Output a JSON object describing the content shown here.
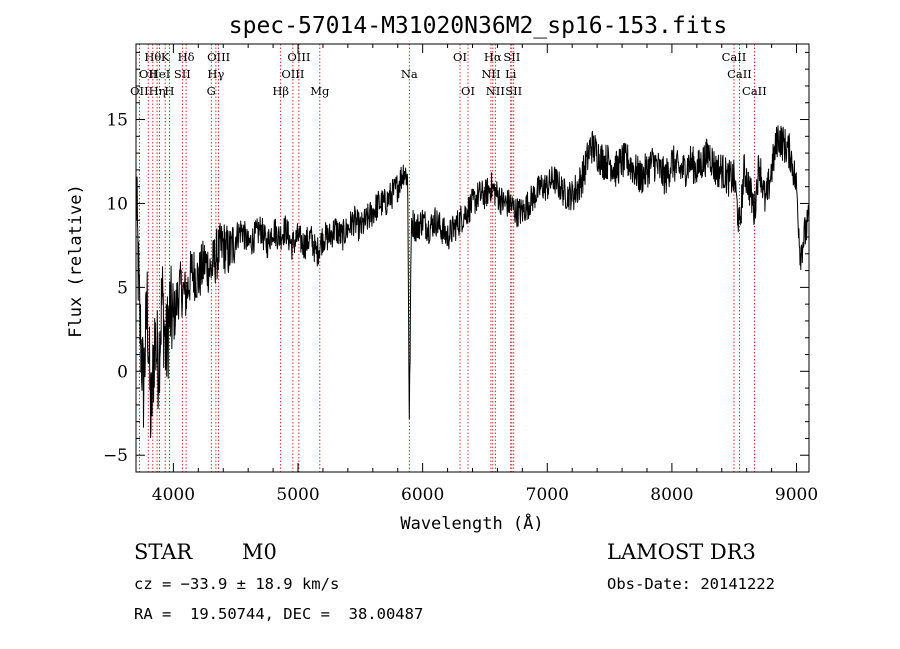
{
  "chart_data": {
    "type": "line",
    "title": "spec-57014-M31020N36M2_sp16-153.fits",
    "xlabel": "Wavelength (Å)",
    "ylabel": "Flux (relative)",
    "xlim": [
      3700,
      9100
    ],
    "ylim": [
      -6,
      19.5
    ],
    "xticks": [
      4000,
      5000,
      6000,
      7000,
      8000,
      9000
    ],
    "xtick_labels": [
      "4000",
      "5000",
      "6000",
      "7000",
      "8000",
      "9000"
    ],
    "yticks": [
      -5,
      0,
      5,
      10,
      15
    ],
    "ytick_labels": [
      "−5",
      "0",
      "5",
      "10",
      "15"
    ],
    "series": [
      {
        "name": "spectrum",
        "x": [
          3700,
          3730,
          3760,
          3790,
          3820,
          3850,
          3880,
          3910,
          3940,
          3970,
          4000,
          4050,
          4100,
          4150,
          4200,
          4250,
          4300,
          4350,
          4400,
          4450,
          4500,
          4550,
          4600,
          4650,
          4700,
          4750,
          4800,
          4850,
          4900,
          4950,
          5000,
          5050,
          5100,
          5150,
          5200,
          5250,
          5300,
          5350,
          5400,
          5450,
          5500,
          5550,
          5600,
          5650,
          5700,
          5750,
          5800,
          5850,
          5880,
          5893,
          5910,
          5950,
          6000,
          6050,
          6100,
          6150,
          6200,
          6250,
          6300,
          6350,
          6400,
          6450,
          6500,
          6550,
          6600,
          6650,
          6700,
          6750,
          6800,
          6850,
          6900,
          6950,
          7000,
          7050,
          7100,
          7150,
          7200,
          7250,
          7300,
          7350,
          7400,
          7450,
          7500,
          7550,
          7600,
          7650,
          7700,
          7750,
          7800,
          7850,
          7900,
          7950,
          8000,
          8050,
          8100,
          8150,
          8200,
          8250,
          8300,
          8350,
          8400,
          8450,
          8500,
          8542,
          8580,
          8620,
          8662,
          8700,
          8750,
          8800,
          8850,
          8900,
          8950,
          9000,
          9030,
          9060,
          9100
        ],
        "y": [
          11.0,
          3.0,
          -1.0,
          4.0,
          -3.0,
          2.0,
          0.5,
          4.5,
          1.0,
          3.5,
          3.0,
          5.0,
          4.5,
          6.0,
          5.5,
          6.5,
          6.0,
          7.0,
          7.5,
          7.0,
          8.0,
          8.5,
          7.5,
          8.0,
          8.5,
          7.5,
          8.5,
          8.0,
          8.5,
          7.5,
          8.0,
          7.5,
          8.0,
          7.0,
          8.0,
          8.0,
          8.5,
          8.0,
          8.5,
          9.0,
          8.5,
          9.0,
          9.5,
          10.0,
          10.0,
          10.5,
          11.0,
          12.0,
          11.5,
          -3.0,
          9.0,
          8.5,
          9.0,
          8.5,
          9.0,
          8.5,
          8.0,
          8.5,
          9.0,
          9.5,
          10.0,
          10.5,
          10.5,
          11.0,
          10.5,
          10.0,
          10.0,
          9.5,
          9.5,
          10.0,
          10.5,
          11.0,
          11.0,
          11.5,
          11.0,
          10.5,
          10.5,
          11.0,
          12.0,
          13.5,
          13.0,
          12.5,
          12.5,
          12.0,
          12.5,
          12.5,
          12.0,
          11.5,
          12.0,
          12.5,
          12.0,
          11.5,
          12.5,
          12.0,
          12.0,
          12.5,
          12.0,
          12.5,
          13.0,
          12.0,
          12.0,
          11.5,
          11.5,
          8.5,
          12.0,
          11.0,
          9.5,
          12.5,
          10.0,
          12.0,
          14.0,
          13.5,
          13.0,
          11.0,
          7.0,
          8.0,
          9.0
        ]
      }
    ],
    "reference_lines": [
      {
        "wavelength": 3727,
        "label": "OII",
        "row": 3
      },
      {
        "wavelength": 3798,
        "label": "OII",
        "row": 2
      },
      {
        "wavelength": 3835,
        "label": "Hθ",
        "row": 1
      },
      {
        "wavelength": 3869,
        "label": "Hη",
        "row": 3
      },
      {
        "wavelength": 3889,
        "label": "HeI",
        "row": 2
      },
      {
        "wavelength": 3934,
        "label": "K",
        "row": 1
      },
      {
        "wavelength": 3968,
        "label": "H",
        "row": 3
      },
      {
        "wavelength": 4072,
        "label": "SII",
        "row": 2
      },
      {
        "wavelength": 4102,
        "label": "Hδ",
        "row": 1
      },
      {
        "wavelength": 4304,
        "label": "G",
        "row": 3
      },
      {
        "wavelength": 4341,
        "label": "Hγ",
        "row": 2
      },
      {
        "wavelength": 4363,
        "label": "OIII",
        "row": 1
      },
      {
        "wavelength": 4861,
        "label": "Hβ",
        "row": 3
      },
      {
        "wavelength": 4959,
        "label": "OIII",
        "row": 2
      },
      {
        "wavelength": 5007,
        "label": "OIII",
        "row": 1
      },
      {
        "wavelength": 5175,
        "label": "Mg",
        "row": 3
      },
      {
        "wavelength": 5893,
        "label": "Na",
        "row": 2
      },
      {
        "wavelength": 6300,
        "label": "OI",
        "row": 1
      },
      {
        "wavelength": 6364,
        "label": "OI",
        "row": 3
      },
      {
        "wavelength": 6548,
        "label": "NII",
        "row": 2
      },
      {
        "wavelength": 6563,
        "label": "Hα",
        "row": 1
      },
      {
        "wavelength": 6583,
        "label": "NII",
        "row": 3
      },
      {
        "wavelength": 6707,
        "label": "Li",
        "row": 2
      },
      {
        "wavelength": 6716,
        "label": "SII",
        "row": 1
      },
      {
        "wavelength": 6731,
        "label": "SII",
        "row": 3
      },
      {
        "wavelength": 8498,
        "label": "CaII",
        "row": 1
      },
      {
        "wavelength": 8542,
        "label": "CaII",
        "row": 2
      },
      {
        "wavelength": 8662,
        "label": "CaII",
        "row": 3
      }
    ],
    "colors": {
      "spectrum": "#000000",
      "reference_lines": "#c00000",
      "axes": "#000000"
    }
  },
  "info": {
    "object_class": "STAR",
    "subclass": "M0",
    "survey": "LAMOST DR3",
    "redshift": "cz = −33.9 ± 18.9 km/s",
    "obs_date": "Obs-Date: 20141222",
    "coords": "RA =  19.50744, DEC =  38.00487"
  }
}
